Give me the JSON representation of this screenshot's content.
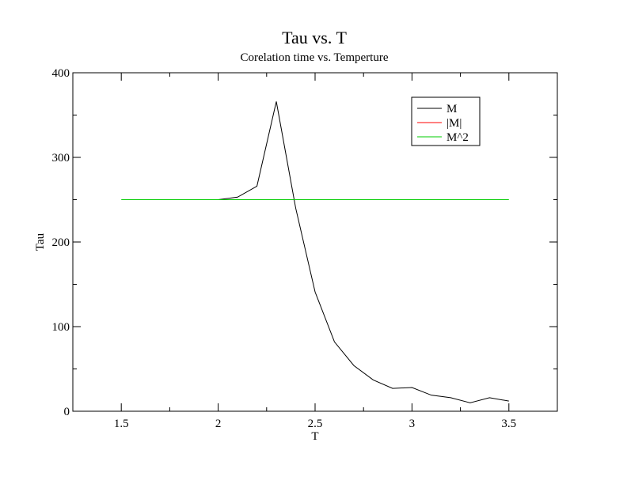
{
  "chart_data": {
    "type": "line",
    "title": "Tau vs. T",
    "subtitle": "Corelation time vs. Temperture",
    "xlabel": "T",
    "ylabel": "Tau",
    "xlim": [
      1.25,
      3.75
    ],
    "ylim": [
      0,
      400
    ],
    "x_ticks": [
      1.5,
      2,
      2.5,
      3,
      3.5
    ],
    "x_tick_labels": [
      "1.5",
      "2",
      "2.5",
      "3",
      "3.5"
    ],
    "y_ticks": [
      0,
      100,
      200,
      300,
      400
    ],
    "y_tick_labels": [
      "0",
      "100",
      "200",
      "300",
      "400"
    ],
    "x_minor_step": 0.25,
    "y_minor_step": 50,
    "grid": false,
    "legend_position": "top-right",
    "series": [
      {
        "name": "M",
        "color": "#000000",
        "x": [
          2.0,
          2.1,
          2.2,
          2.3,
          2.4,
          2.5,
          2.6,
          2.7,
          2.8,
          2.9,
          3.0,
          3.1,
          3.2,
          3.3,
          3.4,
          3.5
        ],
        "y": [
          250,
          253,
          266,
          366,
          240,
          141,
          82,
          54,
          37,
          27,
          28,
          19,
          16,
          10,
          16,
          12
        ]
      },
      {
        "name": "|M|",
        "color": "#ff0000",
        "x": [],
        "y": []
      },
      {
        "name": "M^2",
        "color": "#00cc00",
        "x": [
          1.5,
          3.5
        ],
        "y": [
          250,
          250
        ]
      }
    ]
  }
}
